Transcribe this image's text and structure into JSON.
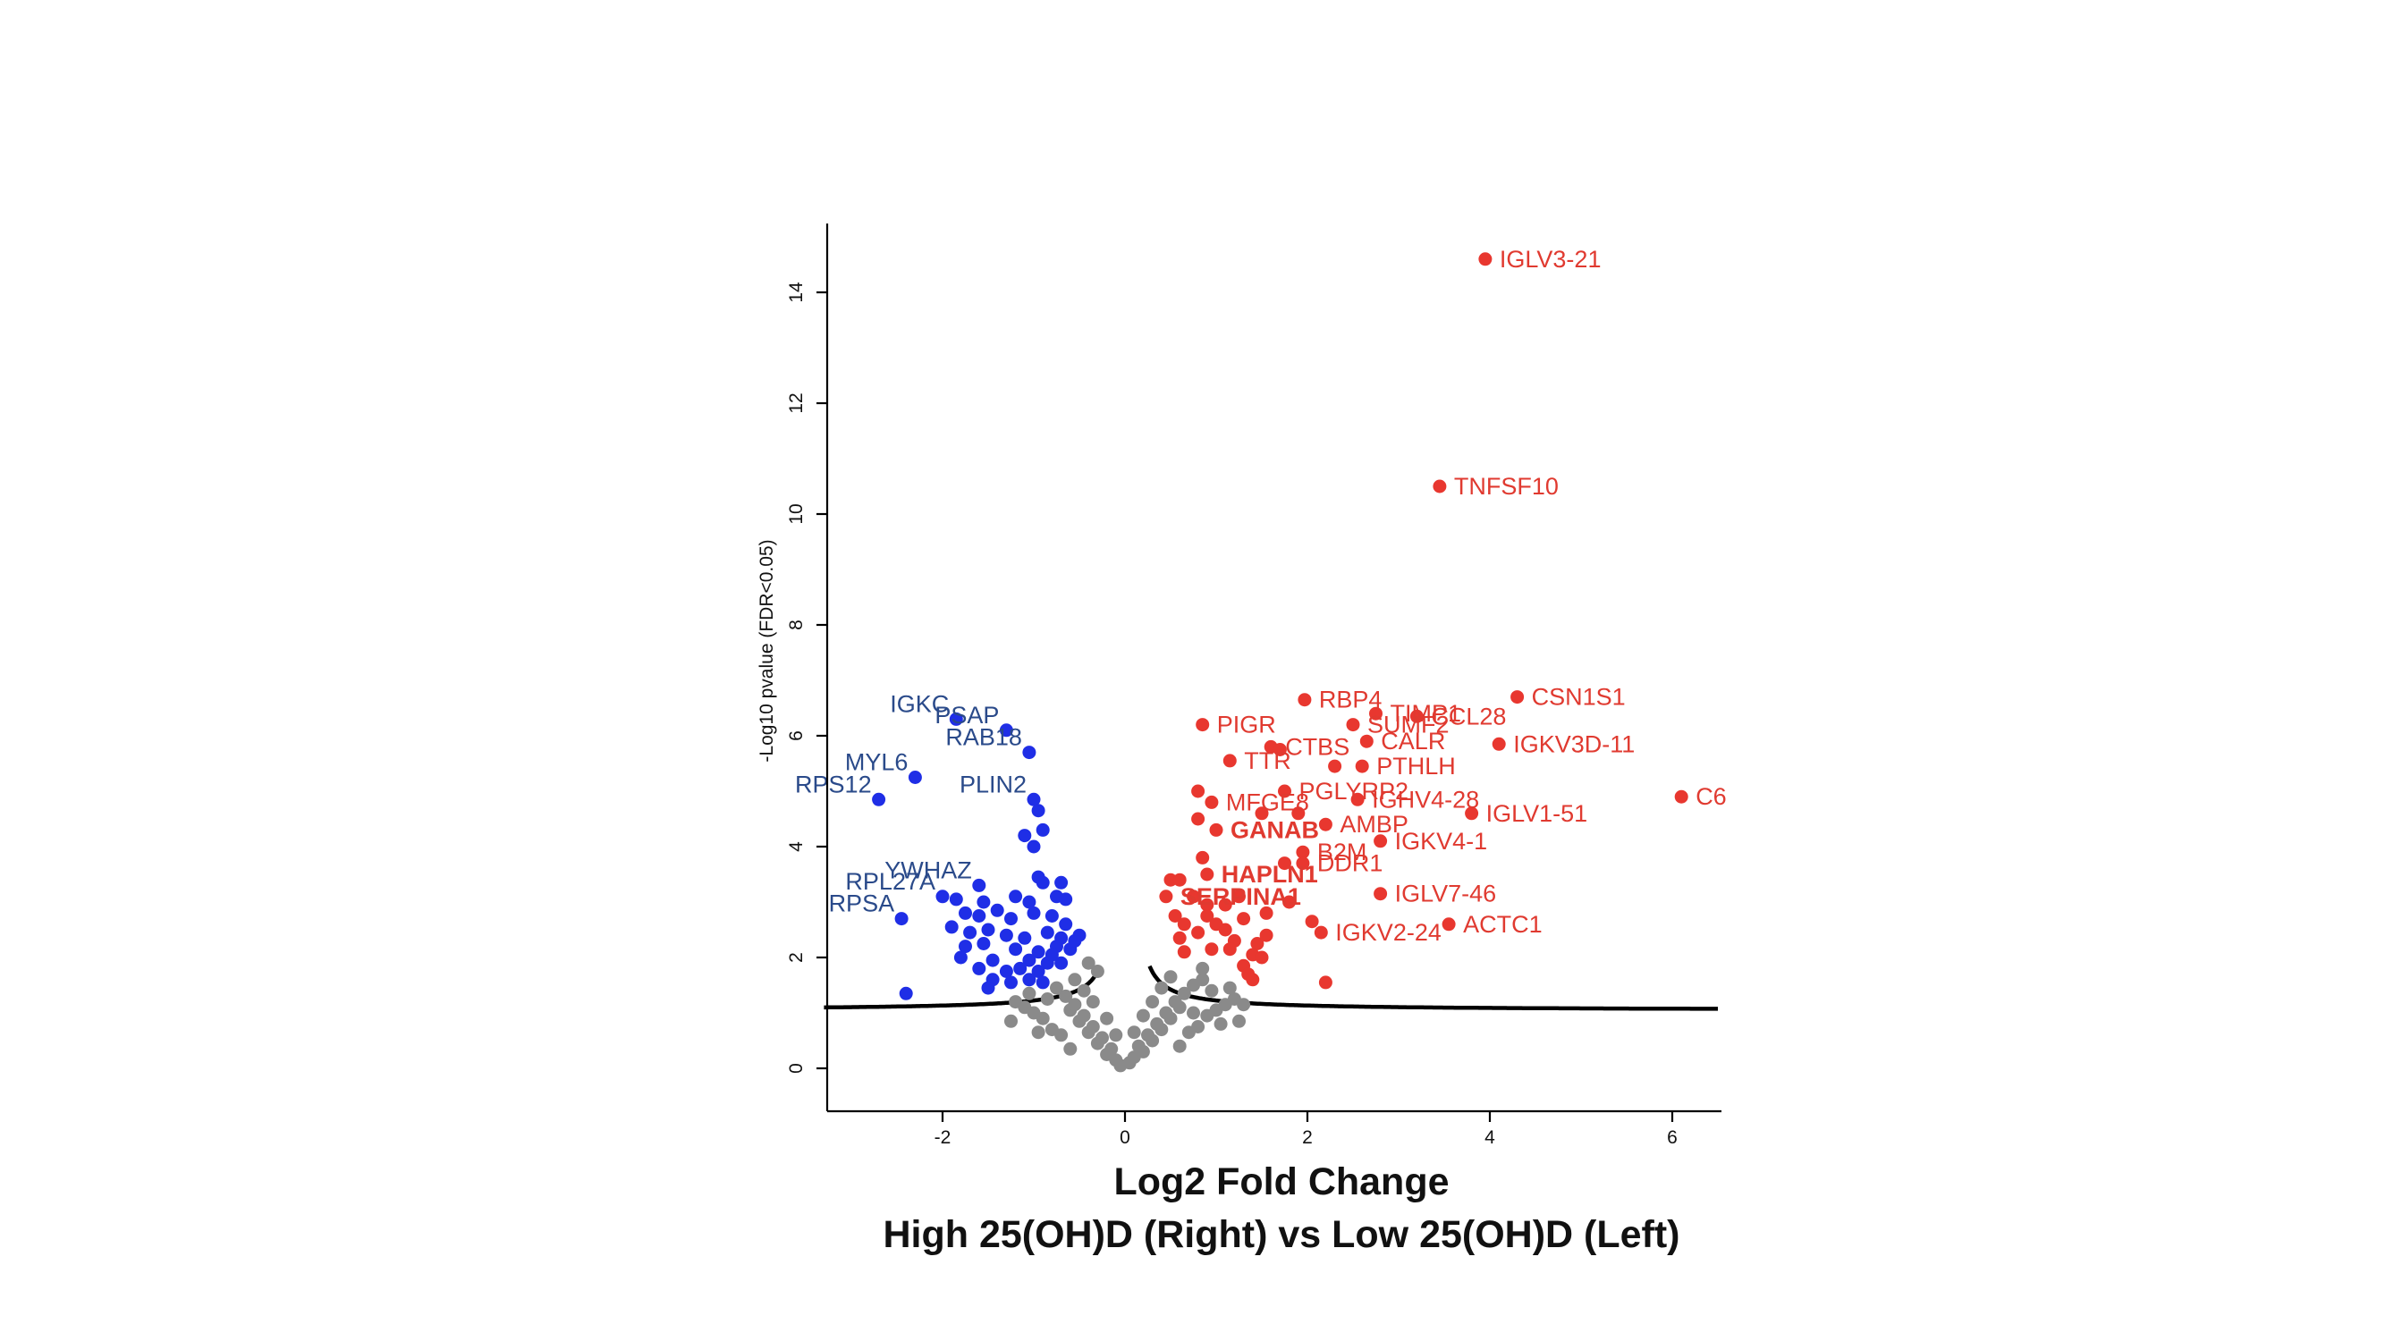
{
  "chart_data": {
    "type": "scatter",
    "xlabel_line1": "Log2 Fold Change",
    "xlabel_line2": "High 25(OH)D (Right) vs Low 25(OH)D (Left)",
    "ylabel": "-Log10 pvalue (FDR<0.05)",
    "xlim": [
      -3.3,
      6.5
    ],
    "ylim": [
      -0.8,
      15.2
    ],
    "x_ticks": [
      -2,
      0,
      2,
      4,
      6
    ],
    "x_tick_labels": [
      "-2",
      "0",
      "2",
      "4",
      "6"
    ],
    "y_ticks": [
      0,
      2,
      4,
      6,
      8,
      10,
      12,
      14
    ],
    "y_tick_labels": [
      "0",
      "2",
      "4",
      "6",
      "8",
      "10",
      "12",
      "14"
    ],
    "grid": false,
    "colors": {
      "up": "#e8372f",
      "down": "#1f2ee6",
      "ns": "#8a8a8a",
      "down_label": "#2a4a8a",
      "up_label": "#e03a30",
      "threshold": "#000000"
    },
    "series": [
      {
        "name": "",
        "color": "#e8372f",
        "points": [
          {
            "x": 3.95,
            "y": 14.6,
            "label": "IGLV3-21"
          },
          {
            "x": 3.45,
            "y": 10.5,
            "label": "TNFSF10"
          },
          {
            "x": 1.97,
            "y": 6.65,
            "label": "RBP4"
          },
          {
            "x": 2.75,
            "y": 6.4,
            "label": "TIMP1"
          },
          {
            "x": 3.2,
            "y": 6.35,
            "label": "CCL28"
          },
          {
            "x": 4.3,
            "y": 6.7,
            "label": "CSN1S1"
          },
          {
            "x": 0.85,
            "y": 6.2,
            "label": "PIGR"
          },
          {
            "x": 2.5,
            "y": 6.2,
            "label": "SUMF2"
          },
          {
            "x": 2.65,
            "y": 5.9,
            "label": "CALR"
          },
          {
            "x": 4.1,
            "y": 5.85,
            "label": "IGKV3D-11"
          },
          {
            "x": 1.15,
            "y": 5.55,
            "label": "TTR"
          },
          {
            "x": 1.6,
            "y": 5.8,
            "label": "CTBS"
          },
          {
            "x": 2.6,
            "y": 5.45,
            "label": "PTHLH"
          },
          {
            "x": 6.1,
            "y": 4.9,
            "label": "C6"
          },
          {
            "x": 0.95,
            "y": 4.8,
            "label": "MFGE8"
          },
          {
            "x": 1.75,
            "y": 5.0,
            "label": "PGLYRP2"
          },
          {
            "x": 2.55,
            "y": 4.85,
            "label": "IGHV4-28"
          },
          {
            "x": 1.0,
            "y": 4.3,
            "label": "GANAB",
            "bold": true
          },
          {
            "x": 3.8,
            "y": 4.6,
            "label": "IGLV1-51"
          },
          {
            "x": 2.2,
            "y": 4.4,
            "label": "AMBP"
          },
          {
            "x": 0.9,
            "y": 3.5,
            "label": "HAPLN1",
            "bold": true
          },
          {
            "x": 1.95,
            "y": 3.9,
            "label": "B2M"
          },
          {
            "x": 2.8,
            "y": 4.1,
            "label": "IGKV4-1"
          },
          {
            "x": 1.95,
            "y": 3.7,
            "label": "DDR1"
          },
          {
            "x": 0.45,
            "y": 3.1,
            "label": "SERPINA1",
            "bold": true
          },
          {
            "x": 2.8,
            "y": 3.15,
            "label": "IGLV7-46"
          },
          {
            "x": 3.55,
            "y": 2.6,
            "label": "ACTC1"
          },
          {
            "x": 2.15,
            "y": 2.45,
            "label": "IGKV2-24"
          },
          {
            "x": 1.7,
            "y": 5.75
          },
          {
            "x": 2.3,
            "y": 5.45
          },
          {
            "x": 0.8,
            "y": 5.0
          },
          {
            "x": 0.8,
            "y": 4.5
          },
          {
            "x": 1.5,
            "y": 4.6
          },
          {
            "x": 1.9,
            "y": 4.6
          },
          {
            "x": 0.85,
            "y": 3.8
          },
          {
            "x": 1.75,
            "y": 3.7
          },
          {
            "x": 0.5,
            "y": 3.4
          },
          {
            "x": 0.6,
            "y": 3.4
          },
          {
            "x": 0.75,
            "y": 3.1
          },
          {
            "x": 0.9,
            "y": 2.95
          },
          {
            "x": 1.1,
            "y": 2.95
          },
          {
            "x": 0.9,
            "y": 2.75
          },
          {
            "x": 0.65,
            "y": 2.6
          },
          {
            "x": 1.0,
            "y": 2.6
          },
          {
            "x": 1.3,
            "y": 2.7
          },
          {
            "x": 0.6,
            "y": 2.35
          },
          {
            "x": 0.8,
            "y": 2.45
          },
          {
            "x": 1.2,
            "y": 2.3
          },
          {
            "x": 1.45,
            "y": 2.25
          },
          {
            "x": 1.55,
            "y": 2.4
          },
          {
            "x": 1.15,
            "y": 2.15
          },
          {
            "x": 1.4,
            "y": 2.05
          },
          {
            "x": 1.3,
            "y": 1.85
          },
          {
            "x": 1.4,
            "y": 1.6
          },
          {
            "x": 0.55,
            "y": 2.75
          },
          {
            "x": 2.05,
            "y": 2.65
          },
          {
            "x": 2.2,
            "y": 1.55
          },
          {
            "x": 0.65,
            "y": 2.1
          },
          {
            "x": 1.5,
            "y": 2.0
          },
          {
            "x": 1.35,
            "y": 1.7
          },
          {
            "x": 0.95,
            "y": 2.15
          },
          {
            "x": 1.1,
            "y": 2.5
          },
          {
            "x": 1.25,
            "y": 3.1
          },
          {
            "x": 1.8,
            "y": 3.0
          },
          {
            "x": 1.55,
            "y": 2.8
          }
        ]
      },
      {
        "name": "",
        "color": "#1f2ee6",
        "points": [
          {
            "x": -1.85,
            "y": 6.3,
            "label": "IGKC"
          },
          {
            "x": -1.3,
            "y": 6.1,
            "label": "PSAP"
          },
          {
            "x": -2.3,
            "y": 5.25,
            "label": "MYL6"
          },
          {
            "x": -1.05,
            "y": 5.7,
            "label": "RAB18"
          },
          {
            "x": -2.7,
            "y": 4.85,
            "label": "RPS12"
          },
          {
            "x": -1.0,
            "y": 4.85,
            "label": "PLIN2"
          },
          {
            "x": -1.6,
            "y": 3.3,
            "label": "YWHAZ"
          },
          {
            "x": -2.0,
            "y": 3.1,
            "label": "RPL27A"
          },
          {
            "x": -2.45,
            "y": 2.7,
            "label": "RPSA"
          },
          {
            "x": -2.4,
            "y": 1.35
          },
          {
            "x": -0.95,
            "y": 4.65
          },
          {
            "x": -0.9,
            "y": 4.3
          },
          {
            "x": -1.1,
            "y": 4.2
          },
          {
            "x": -1.0,
            "y": 4.0
          },
          {
            "x": -0.95,
            "y": 3.45
          },
          {
            "x": -0.9,
            "y": 3.35
          },
          {
            "x": -0.7,
            "y": 3.35
          },
          {
            "x": -0.75,
            "y": 3.1
          },
          {
            "x": -0.65,
            "y": 3.05
          },
          {
            "x": -1.2,
            "y": 3.1
          },
          {
            "x": -1.05,
            "y": 3.0
          },
          {
            "x": -1.55,
            "y": 3.0
          },
          {
            "x": -1.85,
            "y": 3.05
          },
          {
            "x": -1.75,
            "y": 2.8
          },
          {
            "x": -1.6,
            "y": 2.75
          },
          {
            "x": -1.4,
            "y": 2.85
          },
          {
            "x": -1.25,
            "y": 2.7
          },
          {
            "x": -1.0,
            "y": 2.8
          },
          {
            "x": -0.8,
            "y": 2.75
          },
          {
            "x": -0.65,
            "y": 2.6
          },
          {
            "x": -1.9,
            "y": 2.55
          },
          {
            "x": -1.7,
            "y": 2.45
          },
          {
            "x": -1.5,
            "y": 2.5
          },
          {
            "x": -1.3,
            "y": 2.4
          },
          {
            "x": -1.1,
            "y": 2.35
          },
          {
            "x": -0.85,
            "y": 2.45
          },
          {
            "x": -0.7,
            "y": 2.35
          },
          {
            "x": -0.5,
            "y": 2.4
          },
          {
            "x": -1.75,
            "y": 2.2
          },
          {
            "x": -1.55,
            "y": 2.25
          },
          {
            "x": -1.2,
            "y": 2.15
          },
          {
            "x": -0.95,
            "y": 2.1
          },
          {
            "x": -0.75,
            "y": 2.2
          },
          {
            "x": -0.6,
            "y": 2.15
          },
          {
            "x": -1.8,
            "y": 2.0
          },
          {
            "x": -1.45,
            "y": 1.95
          },
          {
            "x": -1.05,
            "y": 1.95
          },
          {
            "x": -0.85,
            "y": 1.9
          },
          {
            "x": -0.7,
            "y": 1.9
          },
          {
            "x": -1.6,
            "y": 1.8
          },
          {
            "x": -1.3,
            "y": 1.75
          },
          {
            "x": -1.15,
            "y": 1.8
          },
          {
            "x": -0.95,
            "y": 1.75
          },
          {
            "x": -1.45,
            "y": 1.6
          },
          {
            "x": -1.25,
            "y": 1.55
          },
          {
            "x": -1.05,
            "y": 1.6
          },
          {
            "x": -0.9,
            "y": 1.55
          },
          {
            "x": -1.5,
            "y": 1.45
          },
          {
            "x": -0.8,
            "y": 2.05
          },
          {
            "x": -0.55,
            "y": 2.3
          }
        ]
      },
      {
        "name": "",
        "color": "#8a8a8a",
        "points": [
          {
            "x": -0.05,
            "y": 0.05
          },
          {
            "x": 0.05,
            "y": 0.1
          },
          {
            "x": -0.1,
            "y": 0.15
          },
          {
            "x": 0.1,
            "y": 0.2
          },
          {
            "x": -0.2,
            "y": 0.25
          },
          {
            "x": 0.2,
            "y": 0.3
          },
          {
            "x": -0.15,
            "y": 0.35
          },
          {
            "x": 0.15,
            "y": 0.4
          },
          {
            "x": -0.3,
            "y": 0.45
          },
          {
            "x": 0.3,
            "y": 0.5
          },
          {
            "x": -0.25,
            "y": 0.55
          },
          {
            "x": 0.25,
            "y": 0.6
          },
          {
            "x": -0.4,
            "y": 0.65
          },
          {
            "x": 0.4,
            "y": 0.7
          },
          {
            "x": -0.35,
            "y": 0.75
          },
          {
            "x": 0.35,
            "y": 0.8
          },
          {
            "x": -0.5,
            "y": 0.85
          },
          {
            "x": 0.5,
            "y": 0.9
          },
          {
            "x": -0.45,
            "y": 0.95
          },
          {
            "x": 0.45,
            "y": 1.0
          },
          {
            "x": -0.6,
            "y": 1.05
          },
          {
            "x": 0.6,
            "y": 1.1
          },
          {
            "x": -0.55,
            "y": 1.15
          },
          {
            "x": 0.55,
            "y": 1.2
          },
          {
            "x": -0.7,
            "y": 0.6
          },
          {
            "x": 0.7,
            "y": 0.65
          },
          {
            "x": -0.8,
            "y": 0.7
          },
          {
            "x": 0.8,
            "y": 0.75
          },
          {
            "x": -0.9,
            "y": 0.9
          },
          {
            "x": 0.9,
            "y": 0.95
          },
          {
            "x": -1.0,
            "y": 1.0
          },
          {
            "x": 1.0,
            "y": 1.05
          },
          {
            "x": -1.1,
            "y": 1.1
          },
          {
            "x": 1.1,
            "y": 1.15
          },
          {
            "x": -0.65,
            "y": 1.3
          },
          {
            "x": 0.65,
            "y": 1.35
          },
          {
            "x": -0.75,
            "y": 1.45
          },
          {
            "x": 0.75,
            "y": 1.5
          },
          {
            "x": -0.55,
            "y": 1.6
          },
          {
            "x": 0.85,
            "y": 1.6
          },
          {
            "x": -0.3,
            "y": 1.75
          },
          {
            "x": 0.95,
            "y": 1.4
          },
          {
            "x": -1.2,
            "y": 1.2
          },
          {
            "x": 1.2,
            "y": 1.25
          },
          {
            "x": -0.85,
            "y": 1.25
          },
          {
            "x": 1.3,
            "y": 1.15
          },
          {
            "x": -0.2,
            "y": 0.9
          },
          {
            "x": 0.2,
            "y": 0.95
          },
          {
            "x": -0.1,
            "y": 0.6
          },
          {
            "x": 0.1,
            "y": 0.65
          },
          {
            "x": -0.45,
            "y": 1.4
          },
          {
            "x": 0.4,
            "y": 1.45
          },
          {
            "x": 0.3,
            "y": 1.2
          },
          {
            "x": -0.35,
            "y": 1.2
          },
          {
            "x": 1.05,
            "y": 0.8
          },
          {
            "x": -0.95,
            "y": 0.65
          },
          {
            "x": 1.25,
            "y": 0.85
          },
          {
            "x": -1.25,
            "y": 0.85
          },
          {
            "x": 0.6,
            "y": 0.4
          },
          {
            "x": -0.6,
            "y": 0.35
          },
          {
            "x": 0.85,
            "y": 1.8
          },
          {
            "x": -0.4,
            "y": 1.9
          },
          {
            "x": 0.5,
            "y": 1.65
          },
          {
            "x": 1.15,
            "y": 1.45
          },
          {
            "x": -1.05,
            "y": 1.35
          },
          {
            "x": 0.75,
            "y": 1.0
          }
        ]
      }
    ]
  }
}
